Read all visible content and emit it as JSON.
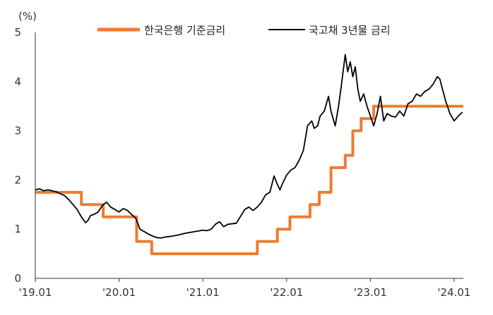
{
  "chart_data": {
    "type": "line",
    "y_unit_label": "(%)",
    "ylim": [
      0,
      5
    ],
    "y_ticks": [
      "0",
      "1",
      "2",
      "3",
      "4",
      "5"
    ],
    "x_ticks": [
      {
        "label": "'19.01",
        "t": 2019.0
      },
      {
        "label": "'20.01",
        "t": 2020.0
      },
      {
        "label": "'21.01",
        "t": 2021.0
      },
      {
        "label": "'22.01",
        "t": 2022.0
      },
      {
        "label": "'23.01",
        "t": 2023.0
      },
      {
        "label": "'24.01",
        "t": 2024.0
      }
    ],
    "xlim": [
      2019.0,
      2024.11
    ],
    "grid": false,
    "legend_position": "top",
    "colors": {
      "base_rate": "#ED7D31",
      "bond_3y": "#000000"
    },
    "series": [
      {
        "name": "한국은행 기준금리",
        "style": "step",
        "x": [
          2019.0,
          2019.55,
          2019.81,
          2020.21,
          2020.39,
          2021.65,
          2021.89,
          2022.04,
          2022.28,
          2022.39,
          2022.53,
          2022.7,
          2022.79,
          2022.89,
          2023.04,
          2024.11
        ],
        "y": [
          1.75,
          1.5,
          1.25,
          0.75,
          0.5,
          0.75,
          1.0,
          1.25,
          1.5,
          1.75,
          2.25,
          2.5,
          3.0,
          3.25,
          3.5,
          3.5
        ]
      },
      {
        "name": "국고채 3년물 금리",
        "style": "line",
        "x": [
          2019.0,
          2019.05,
          2019.1,
          2019.15,
          2019.2,
          2019.25,
          2019.3,
          2019.35,
          2019.4,
          2019.45,
          2019.5,
          2019.55,
          2019.6,
          2019.63,
          2019.66,
          2019.7,
          2019.75,
          2019.8,
          2019.85,
          2019.9,
          2019.95,
          2020.0,
          2020.05,
          2020.1,
          2020.15,
          2020.2,
          2020.25,
          2020.3,
          2020.35,
          2020.4,
          2020.45,
          2020.5,
          2020.55,
          2020.6,
          2020.7,
          2020.8,
          2020.9,
          2021.0,
          2021.05,
          2021.1,
          2021.15,
          2021.2,
          2021.25,
          2021.3,
          2021.4,
          2021.5,
          2021.55,
          2021.6,
          2021.65,
          2021.7,
          2021.75,
          2021.8,
          2021.85,
          2021.88,
          2021.92,
          2021.95,
          2022.0,
          2022.05,
          2022.1,
          2022.15,
          2022.2,
          2022.25,
          2022.3,
          2022.33,
          2022.37,
          2022.4,
          2022.45,
          2022.5,
          2022.53,
          2022.58,
          2022.62,
          2022.66,
          2022.7,
          2022.73,
          2022.76,
          2022.79,
          2022.82,
          2022.85,
          2022.88,
          2022.92,
          2022.96,
          2023.0,
          2023.04,
          2023.08,
          2023.12,
          2023.16,
          2023.2,
          2023.25,
          2023.3,
          2023.35,
          2023.4,
          2023.45,
          2023.5,
          2023.55,
          2023.6,
          2023.65,
          2023.7,
          2023.75,
          2023.8,
          2023.83,
          2023.86,
          2023.9,
          2023.95,
          2024.0,
          2024.05,
          2024.1
        ],
        "y": [
          1.8,
          1.82,
          1.78,
          1.8,
          1.78,
          1.76,
          1.72,
          1.68,
          1.6,
          1.5,
          1.4,
          1.25,
          1.13,
          1.18,
          1.28,
          1.3,
          1.35,
          1.48,
          1.55,
          1.45,
          1.4,
          1.35,
          1.42,
          1.38,
          1.3,
          1.22,
          1.0,
          0.95,
          0.9,
          0.86,
          0.83,
          0.82,
          0.84,
          0.85,
          0.88,
          0.92,
          0.95,
          0.98,
          0.97,
          1.0,
          1.1,
          1.15,
          1.05,
          1.1,
          1.12,
          1.4,
          1.45,
          1.38,
          1.45,
          1.55,
          1.7,
          1.75,
          2.08,
          1.95,
          1.8,
          1.92,
          2.1,
          2.2,
          2.25,
          2.4,
          2.6,
          3.1,
          3.2,
          3.05,
          3.1,
          3.3,
          3.4,
          3.7,
          3.4,
          3.1,
          3.5,
          4.0,
          4.55,
          4.2,
          4.4,
          4.1,
          4.3,
          3.85,
          3.6,
          3.75,
          3.5,
          3.3,
          3.1,
          3.35,
          3.7,
          3.2,
          3.35,
          3.3,
          3.28,
          3.4,
          3.3,
          3.55,
          3.6,
          3.75,
          3.7,
          3.8,
          3.85,
          3.95,
          4.1,
          4.05,
          3.85,
          3.6,
          3.35,
          3.2,
          3.3,
          3.38
        ]
      }
    ]
  }
}
